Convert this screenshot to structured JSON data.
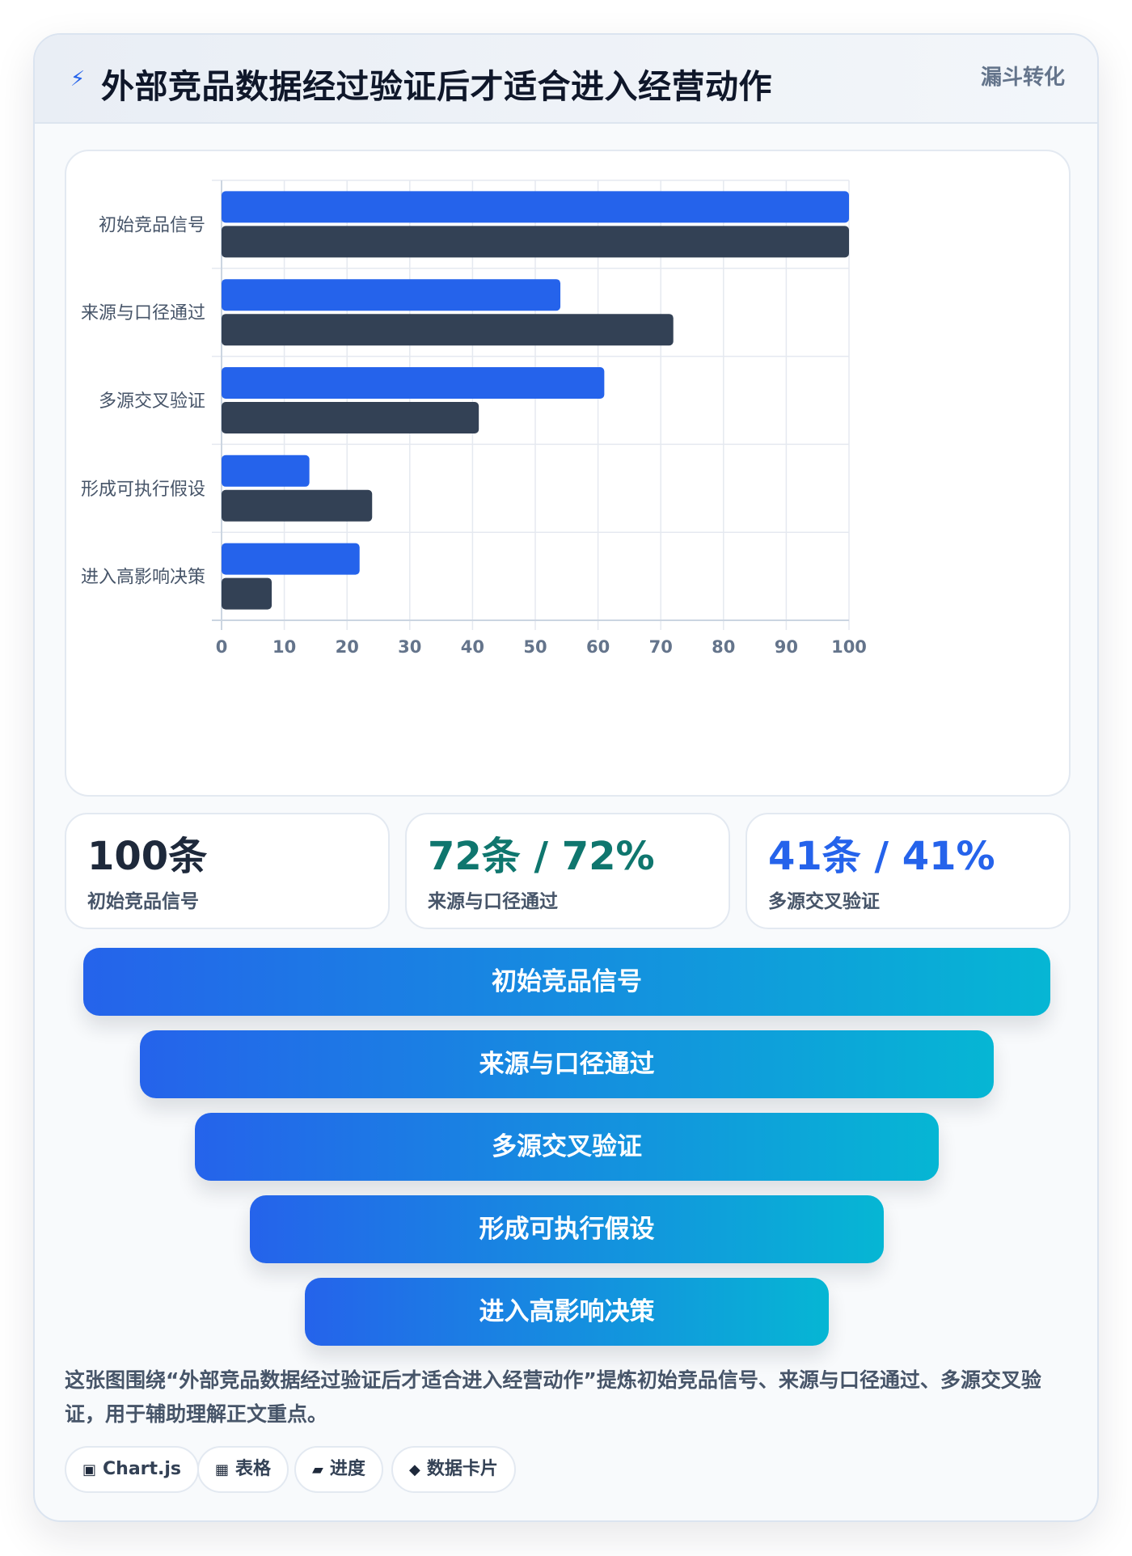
{
  "header": {
    "icon": "lightning-icon",
    "title": "外部竞品数据经过验证后才适合进入经营动作",
    "tag": "漏斗转化"
  },
  "chart_data": {
    "type": "bar",
    "orientation": "horizontal",
    "categories": [
      "初始竞品信号",
      "来源与口径通过",
      "多源交叉验证",
      "形成可执行假设",
      "进入高影响决策"
    ],
    "series": [
      {
        "values": [
          100,
          54,
          61,
          14,
          22
        ],
        "color": "#2563eb"
      },
      {
        "values": [
          100,
          72,
          41,
          24,
          8
        ],
        "color": "#334155"
      }
    ],
    "xlim": [
      0,
      100
    ],
    "x_ticks": [
      0,
      10,
      20,
      30,
      40,
      50,
      60,
      70,
      80,
      90,
      100
    ],
    "grid": true,
    "legend": "none"
  },
  "stats": [
    {
      "value": "100条",
      "label": "初始竞品信号",
      "color": "#1e293b"
    },
    {
      "value": "72条 / 72%",
      "label": "来源与口径通过",
      "color": "#0f766e"
    },
    {
      "value": "41条 / 41%",
      "label": "多源交叉验证",
      "color": "#2563eb"
    }
  ],
  "funnel": {
    "stages": [
      "初始竞品信号",
      "来源与口径通过",
      "多源交叉验证",
      "形成可执行假设",
      "进入高影响决策"
    ],
    "gradient": [
      "#2563eb",
      "#06b6d4"
    ]
  },
  "summary": "这张图围绕“外部竞品数据经过验证后才适合进入经营动作”提炼初始竞品信号、来源与口径通过、多源交叉验证，用于辅助理解正文重点。",
  "chips": [
    {
      "icon": "chart-icon",
      "glyph": "▣",
      "label": "Chart.js"
    },
    {
      "icon": "table-icon",
      "glyph": "▦",
      "label": "表格"
    },
    {
      "icon": "progress-icon",
      "glyph": "▰",
      "label": "进度"
    },
    {
      "icon": "data-card-icon",
      "glyph": "◆",
      "label": "数据卡片"
    }
  ]
}
